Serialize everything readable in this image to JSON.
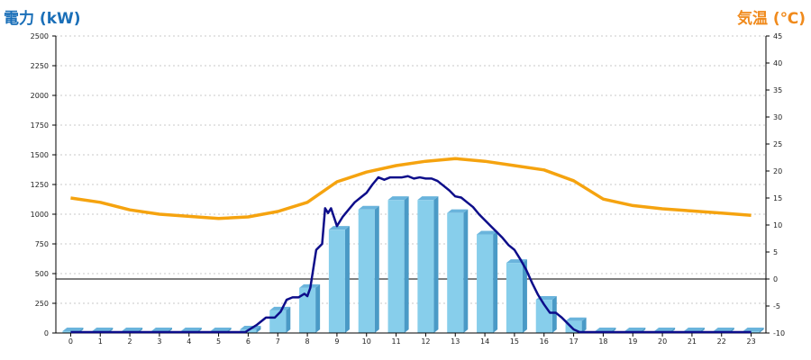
{
  "chart_data": {
    "type": "bar+line",
    "left_axis_title": "電力 (kW)",
    "right_axis_title": "気温 (℃)",
    "categories": [
      "0",
      "1",
      "2",
      "3",
      "4",
      "5",
      "6",
      "7",
      "8",
      "9",
      "10",
      "11",
      "12",
      "13",
      "14",
      "15",
      "16",
      "17",
      "18",
      "19",
      "20",
      "21",
      "22",
      "23"
    ],
    "left_ylim": [
      0,
      2500
    ],
    "left_ticks": [
      "0",
      "250",
      "500",
      "750",
      "1000",
      "1250",
      "1500",
      "1750",
      "2000",
      "2250",
      "2500"
    ],
    "right_ylim": [
      -10,
      45
    ],
    "right_ticks": [
      "-10",
      "-5",
      "0",
      "5",
      "10",
      "15",
      "20",
      "25",
      "30",
      "35",
      "40",
      "45"
    ],
    "grid": true,
    "power_bars": [
      0,
      0,
      0,
      0,
      0,
      0,
      30,
      190,
      380,
      870,
      1040,
      1120,
      1120,
      1010,
      830,
      590,
      280,
      100,
      0,
      0,
      0,
      0,
      0,
      0
    ],
    "power_line": {
      "x": [
        0,
        1,
        2,
        3,
        4,
        5,
        5.9,
        6.3,
        6.6,
        6.9,
        7.1,
        7.3,
        7.5,
        7.7,
        7.9,
        8.0,
        8.1,
        8.3,
        8.5,
        8.6,
        8.7,
        8.8,
        9.0,
        9.2,
        9.4,
        9.6,
        9.8,
        10.0,
        10.2,
        10.4,
        10.6,
        10.8,
        11.0,
        11.2,
        11.4,
        11.6,
        11.8,
        12.0,
        12.2,
        12.4,
        12.6,
        12.8,
        13.0,
        13.2,
        13.4,
        13.6,
        13.8,
        14.0,
        14.2,
        14.4,
        14.6,
        14.8,
        15.0,
        15.2,
        15.4,
        15.6,
        15.8,
        16.0,
        16.2,
        16.4,
        16.6,
        16.8,
        17.0,
        17.2,
        17.4,
        18,
        19,
        20,
        21,
        22,
        23
      ],
      "y": [
        0,
        0,
        0,
        0,
        0,
        0,
        0,
        70,
        130,
        130,
        180,
        280,
        300,
        300,
        330,
        310,
        380,
        700,
        750,
        1050,
        1010,
        1050,
        900,
        980,
        1040,
        1100,
        1140,
        1180,
        1250,
        1310,
        1290,
        1310,
        1310,
        1310,
        1320,
        1300,
        1310,
        1300,
        1300,
        1280,
        1240,
        1200,
        1150,
        1140,
        1100,
        1060,
        1000,
        950,
        900,
        850,
        800,
        740,
        700,
        620,
        530,
        420,
        320,
        240,
        170,
        170,
        130,
        80,
        30,
        0,
        0,
        0,
        0,
        0,
        0,
        0,
        0
      ]
    },
    "temperature": [
      15.0,
      14.2,
      12.8,
      12.0,
      11.6,
      11.2,
      11.5,
      12.5,
      14.2,
      18.0,
      19.8,
      21.0,
      21.8,
      22.3,
      21.8,
      21.0,
      20.2,
      18.2,
      14.8,
      13.6,
      13.0,
      12.6,
      12.2,
      11.8
    ],
    "colors": {
      "bar_front": "#87ceeb",
      "bar_side": "#4a9ac6",
      "bar_top": "#6ab4dc",
      "power_line": "#0d0d8a",
      "temperature_line": "#f5a30f",
      "left_title": "#1a6fb8",
      "right_title": "#f08a1c"
    }
  }
}
